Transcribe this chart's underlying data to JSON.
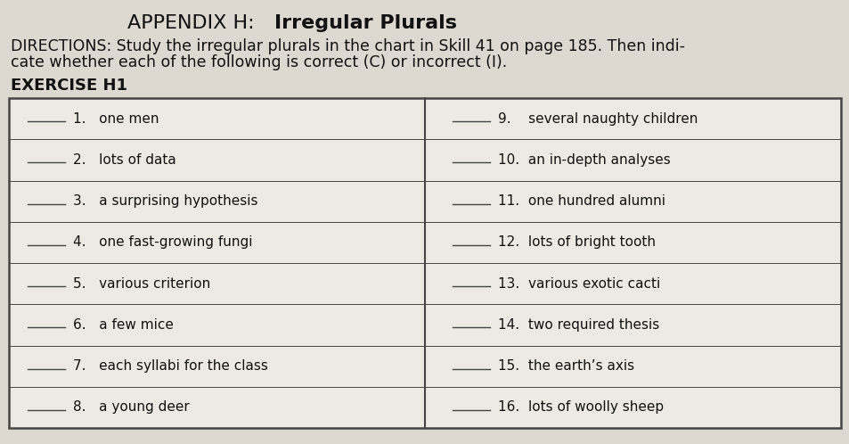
{
  "title_prefix": "APPENDIX H:  ",
  "title_bold": "Irregular Plurals",
  "directions_line1": "DIRECTIONS: Study the irregular plurals in the chart in Skill 41 on page 185. Then indi-",
  "directions_line2": "cate whether each of the following is correct (C) or incorrect (I).",
  "exercise_label": "EXERCISE H1",
  "left_items": [
    "1.   one men",
    "2.   lots of data",
    "3.   a surprising hypothesis",
    "4.   one fast-growing fungi",
    "5.   various criterion",
    "6.   a few mice",
    "7.   each syllabi for the class",
    "8.   a young deer"
  ],
  "right_items": [
    "9.    several naughty children",
    "10.  an in-depth analyses",
    "11.  one hundred alumni",
    "12.  lots of bright tooth",
    "13.  various exotic cacti",
    "14.  two required thesis",
    "15.  the earth’s axis",
    "16.  lots of woolly sheep"
  ],
  "bg_color": "#ddd9d0",
  "box_bg": "#edeae3",
  "text_color": "#111111",
  "line_color": "#444444",
  "title_fontsize": 16,
  "directions_fontsize": 12.5,
  "exercise_fontsize": 13,
  "item_fontsize": 11
}
